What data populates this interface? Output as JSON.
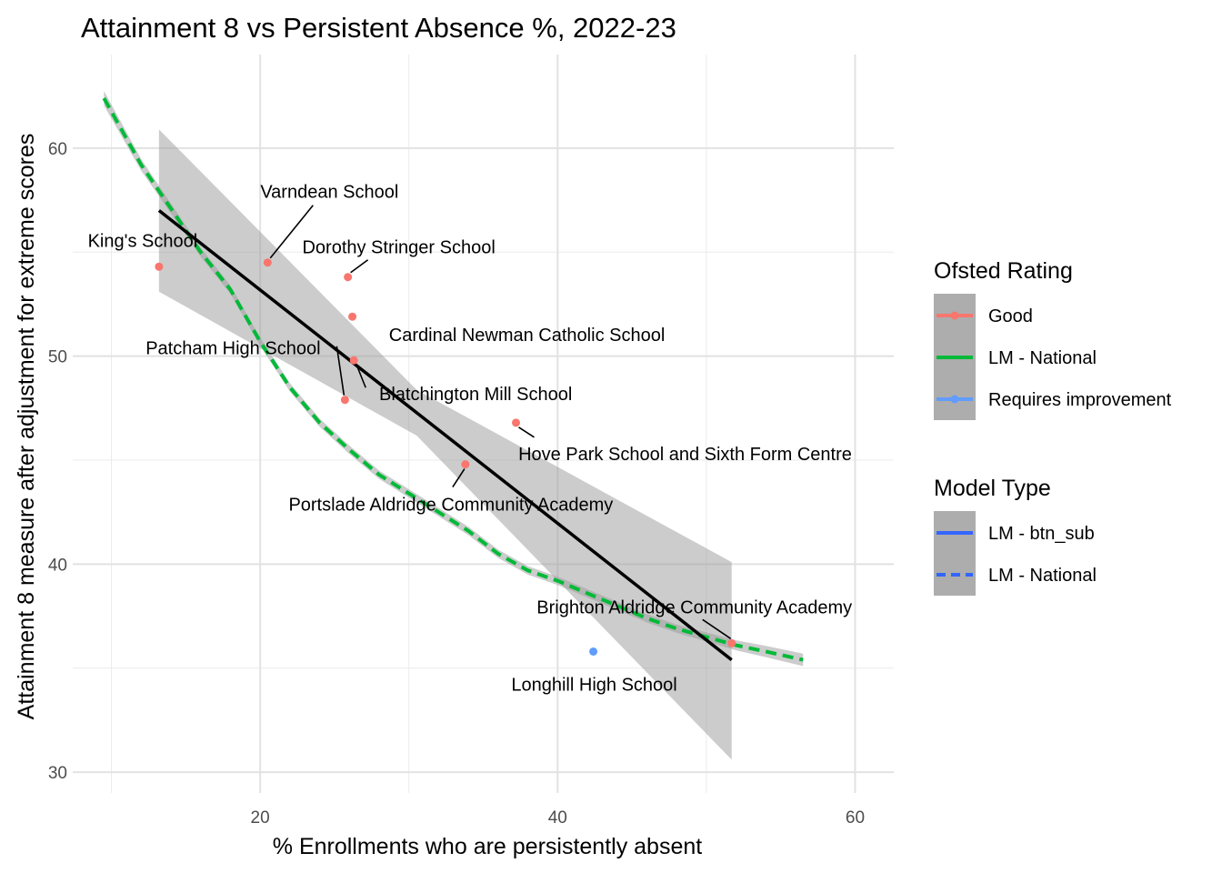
{
  "chart_data": {
    "type": "scatter",
    "title": "Attainment 8 vs Persistent Absence %, 2022-23",
    "xlabel": "% Enrollments who are persistently absent",
    "ylabel": "Attainment 8 measure after adjustment for extreme scores",
    "xlim": [
      7.4,
      62.6
    ],
    "ylim": [
      29,
      64.5
    ],
    "x_ticks": [
      20,
      40,
      60
    ],
    "y_ticks": [
      30,
      40,
      50,
      60
    ],
    "grid": true,
    "legend_position": "right",
    "points": [
      {
        "name": "King's School",
        "x": 13.2,
        "y": 54.3,
        "rating": "Good"
      },
      {
        "name": "Varndean School",
        "x": 20.5,
        "y": 54.5,
        "rating": "Good"
      },
      {
        "name": "Dorothy Stringer School",
        "x": 25.9,
        "y": 53.8,
        "rating": "Good"
      },
      {
        "name": "Cardinal Newman Catholic School",
        "x": 26.2,
        "y": 51.9,
        "rating": "Good"
      },
      {
        "name": "Patcham High School",
        "x": 25.7,
        "y": 47.9,
        "rating": "Good"
      },
      {
        "name": "Blatchington Mill School",
        "x": 26.3,
        "y": 49.8,
        "rating": "Good"
      },
      {
        "name": "Hove Park School and Sixth Form Centre",
        "x": 37.2,
        "y": 46.8,
        "rating": "Good"
      },
      {
        "name": "Portslade Aldridge Community Academy",
        "x": 33.8,
        "y": 44.8,
        "rating": "Good"
      },
      {
        "name": "Brighton Aldridge Community Academy",
        "x": 51.7,
        "y": 36.2,
        "rating": "Good"
      },
      {
        "name": "Longhill High School",
        "x": 42.4,
        "y": 35.8,
        "rating": "Requires improvement"
      }
    ],
    "series": [
      {
        "name": "LM - btn_sub",
        "style": "solid",
        "color": "#000000",
        "x": [
          13.2,
          51.7
        ],
        "y": [
          57.0,
          35.4
        ],
        "band_lower": [
          53.1,
          30.6
        ],
        "band_upper": [
          60.9,
          40.1
        ]
      },
      {
        "name": "LM - National",
        "style": "dashed",
        "color": "#00BA38",
        "x": [
          9.5,
          12,
          14,
          16,
          18,
          20,
          22,
          24,
          26,
          28,
          30,
          32,
          34,
          36,
          38,
          40,
          42,
          44,
          46,
          48,
          50,
          52,
          54,
          56.5
        ],
        "y": [
          62.4,
          59.2,
          57.1,
          55.0,
          53.2,
          50.7,
          48.5,
          46.8,
          45.5,
          44.3,
          43.4,
          42.5,
          41.6,
          40.5,
          39.7,
          39.2,
          38.6,
          38.0,
          37.4,
          36.9,
          36.5,
          36.1,
          35.8,
          35.4
        ],
        "band_halfwidth": [
          0.35,
          0.28,
          0.24,
          0.22,
          0.2,
          0.2,
          0.2,
          0.2,
          0.2,
          0.2,
          0.2,
          0.2,
          0.2,
          0.2,
          0.2,
          0.2,
          0.2,
          0.2,
          0.2,
          0.2,
          0.22,
          0.24,
          0.27,
          0.3
        ]
      }
    ],
    "colors": {
      "Good": "#F8766D",
      "Requires improvement": "#619CFF",
      "national": "#00BA38",
      "model_legend": "#3366FF",
      "band": "#999999"
    },
    "legends": [
      {
        "title": "Ofsted Rating",
        "items": [
          {
            "label": "Good",
            "color": "#F8766D",
            "kind": "point-line"
          },
          {
            "label": "LM - National",
            "color": "#00BA38",
            "kind": "line"
          },
          {
            "label": "Requires improvement",
            "color": "#619CFF",
            "kind": "point-line"
          }
        ]
      },
      {
        "title": "Model Type",
        "items": [
          {
            "label": "LM - btn_sub",
            "color": "#3366FF",
            "kind": "solid"
          },
          {
            "label": "LM - National",
            "color": "#3366FF",
            "kind": "dashed"
          }
        ]
      }
    ]
  }
}
